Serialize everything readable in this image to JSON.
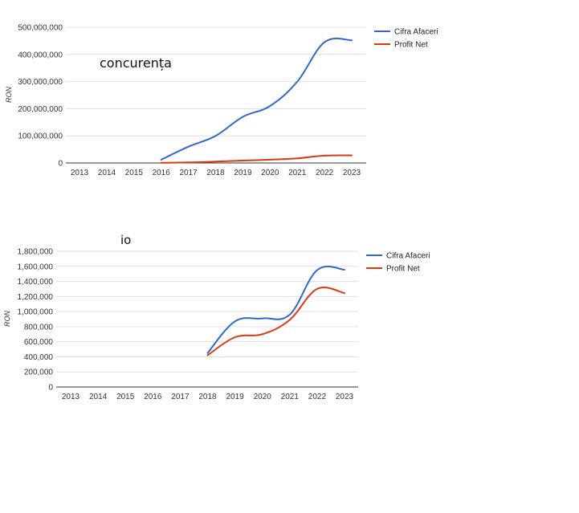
{
  "colors": {
    "revenue": "#3366cc",
    "profit": "#dc3912",
    "grid": "#e0e0e0",
    "axis": "#333333"
  },
  "chart_data": [
    {
      "type": "line",
      "overlay_label": "concurența",
      "ylabel": "RON",
      "x": [
        "2013",
        "2014",
        "2015",
        "2016",
        "2017",
        "2018",
        "2019",
        "2020",
        "2021",
        "2022",
        "2023"
      ],
      "ylim": [
        0,
        500000000
      ],
      "yticks": [
        "0",
        "100,000,000",
        "200,000,000",
        "300,000,000",
        "400,000,000",
        "500,000,000"
      ],
      "grid": true,
      "legend": "right",
      "series": [
        {
          "name": "Cifra Afaceri",
          "values": [
            null,
            null,
            null,
            12000000,
            60000000,
            100000000,
            170000000,
            210000000,
            300000000,
            445000000,
            452000000
          ]
        },
        {
          "name": "Profit Net",
          "values": [
            null,
            null,
            null,
            500000,
            2000000,
            5000000,
            9000000,
            12000000,
            17000000,
            27000000,
            28000000
          ]
        }
      ]
    },
    {
      "type": "line",
      "overlay_label": "io",
      "ylabel": "RON",
      "x": [
        "2013",
        "2014",
        "2015",
        "2016",
        "2017",
        "2018",
        "2019",
        "2020",
        "2021",
        "2022",
        "2023"
      ],
      "ylim": [
        0,
        1800000
      ],
      "yticks": [
        "0",
        "200,000",
        "400,000",
        "600,000",
        "800,000",
        "1,000,000",
        "1,200,000",
        "1,400,000",
        "1,600,000",
        "1,800,000"
      ],
      "grid": true,
      "legend": "right",
      "series": [
        {
          "name": "Cifra Afaceri",
          "values": [
            null,
            null,
            null,
            null,
            null,
            450000,
            870000,
            910000,
            960000,
            1550000,
            1555000
          ]
        },
        {
          "name": "Profit Net",
          "values": [
            null,
            null,
            null,
            null,
            null,
            420000,
            660000,
            700000,
            890000,
            1300000,
            1245000
          ]
        }
      ]
    }
  ]
}
